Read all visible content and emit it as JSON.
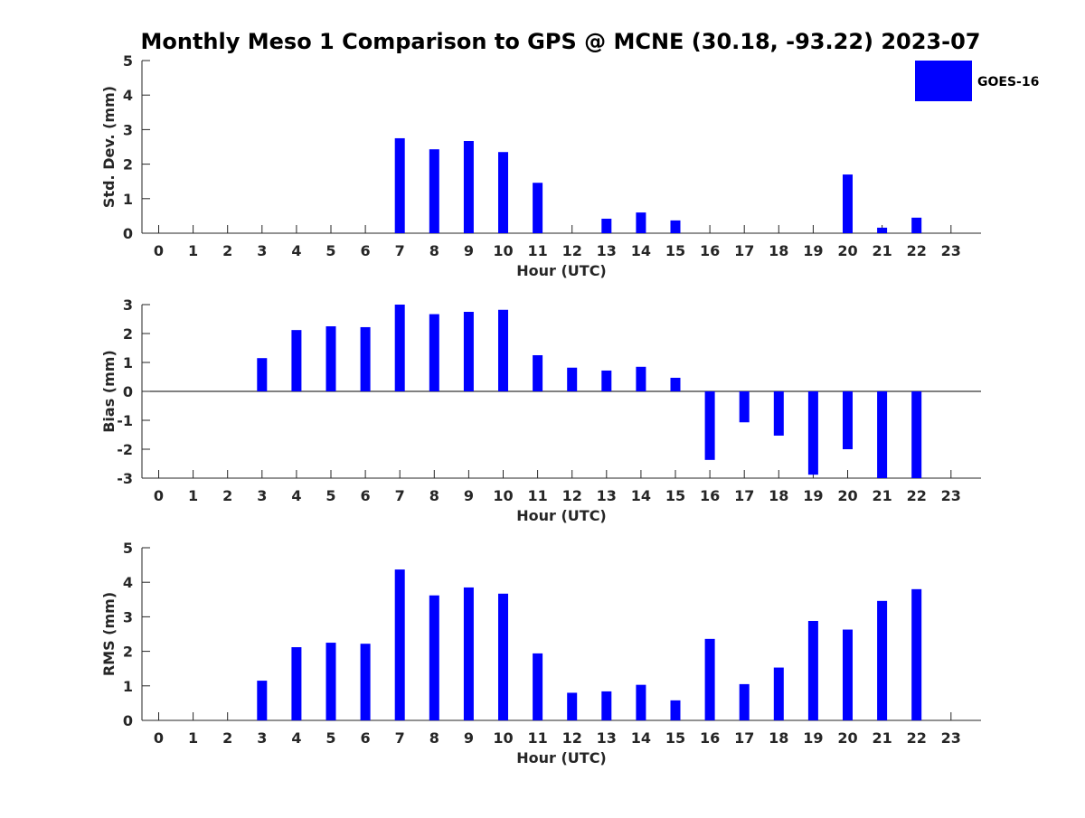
{
  "title": "Monthly Meso 1 Comparison to GPS @ MCNE (30.18, -93.22) 2023-07",
  "legend": {
    "label": "GOES-16",
    "placement": "top-right",
    "color": "#0000ff"
  },
  "colors": {
    "bar": "#0000ff",
    "axis": "#262626"
  },
  "chart_data": [
    {
      "type": "bar",
      "title": "Monthly Meso 1 Comparison to GPS @ MCNE (30.18, -93.22) 2023-07",
      "xlabel": "Hour (UTC)",
      "ylabel": "Std. Dev. (mm)",
      "ylim": [
        0,
        5
      ],
      "yticks": [
        0,
        1,
        2,
        3,
        4,
        5
      ],
      "categories": [
        "0",
        "1",
        "2",
        "3",
        "4",
        "5",
        "6",
        "7",
        "8",
        "9",
        "10",
        "11",
        "12",
        "13",
        "14",
        "15",
        "16",
        "17",
        "18",
        "19",
        "20",
        "21",
        "22",
        "23"
      ],
      "series": [
        {
          "name": "GOES-16",
          "values": [
            null,
            null,
            null,
            null,
            null,
            null,
            null,
            2.75,
            2.43,
            2.67,
            2.35,
            1.46,
            null,
            0.42,
            0.6,
            0.37,
            null,
            null,
            null,
            null,
            1.7,
            0.16,
            0.45,
            null
          ]
        }
      ],
      "legend": "top-right",
      "grid": false
    },
    {
      "type": "bar",
      "xlabel": "Hour (UTC)",
      "ylabel": "Bias (mm)",
      "ylim": [
        -3,
        3
      ],
      "yticks": [
        -3,
        -2,
        -1,
        0,
        1,
        2,
        3
      ],
      "categories": [
        "0",
        "1",
        "2",
        "3",
        "4",
        "5",
        "6",
        "7",
        "8",
        "9",
        "10",
        "11",
        "12",
        "13",
        "14",
        "15",
        "16",
        "17",
        "18",
        "19",
        "20",
        "21",
        "22",
        "23"
      ],
      "series": [
        {
          "name": "GOES-16",
          "values": [
            null,
            null,
            null,
            1.15,
            2.12,
            2.25,
            2.22,
            3.0,
            2.67,
            2.75,
            2.82,
            1.25,
            0.82,
            0.72,
            0.85,
            0.47,
            -2.37,
            -1.07,
            -1.53,
            -2.88,
            -2.0,
            -3.0,
            -3.0,
            null
          ]
        }
      ],
      "grid": false
    },
    {
      "type": "bar",
      "xlabel": "Hour (UTC)",
      "ylabel": "RMS (mm)",
      "ylim": [
        0,
        5
      ],
      "yticks": [
        0,
        1,
        2,
        3,
        4,
        5
      ],
      "categories": [
        "0",
        "1",
        "2",
        "3",
        "4",
        "5",
        "6",
        "7",
        "8",
        "9",
        "10",
        "11",
        "12",
        "13",
        "14",
        "15",
        "16",
        "17",
        "18",
        "19",
        "20",
        "21",
        "22",
        "23"
      ],
      "series": [
        {
          "name": "GOES-16",
          "values": [
            null,
            null,
            null,
            1.15,
            2.12,
            2.25,
            2.22,
            4.37,
            3.62,
            3.85,
            3.67,
            1.94,
            0.8,
            0.84,
            1.03,
            0.58,
            2.36,
            1.05,
            1.53,
            2.88,
            2.63,
            3.46,
            3.8,
            null
          ]
        }
      ],
      "grid": false
    }
  ]
}
